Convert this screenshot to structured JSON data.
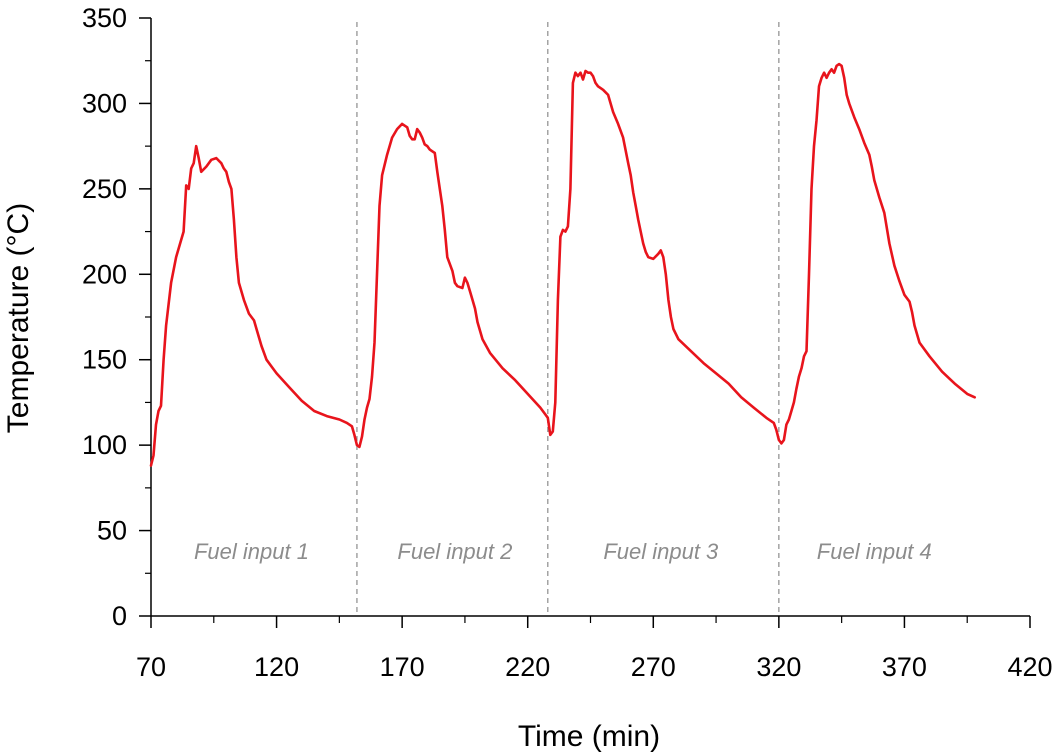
{
  "chart_data": {
    "type": "line",
    "xlabel": "Time (min)",
    "ylabel": "Temperature (°C)",
    "xlim": [
      70,
      420
    ],
    "ylim": [
      0,
      350
    ],
    "x_ticks": [
      70,
      120,
      170,
      220,
      270,
      320,
      370,
      420
    ],
    "y_ticks": [
      0,
      50,
      100,
      150,
      200,
      250,
      300,
      350
    ],
    "grid": false,
    "line_color": "#e8141c",
    "divider_color": "#8c8c8c",
    "dividers": [
      152,
      228,
      320
    ],
    "regions": [
      {
        "label": "Fuel input 1",
        "x": 110
      },
      {
        "label": "Fuel input 2",
        "x": 191
      },
      {
        "label": "Fuel input 3",
        "x": 273
      },
      {
        "label": "Fuel input 4",
        "x": 358
      }
    ],
    "series": [
      {
        "points": [
          [
            70,
            88
          ],
          [
            71,
            94
          ],
          [
            72,
            112
          ],
          [
            73,
            120
          ],
          [
            74,
            123
          ],
          [
            75,
            150
          ],
          [
            76,
            170
          ],
          [
            78,
            195
          ],
          [
            80,
            210
          ],
          [
            82,
            220
          ],
          [
            83,
            225
          ],
          [
            84,
            252
          ],
          [
            85,
            250
          ],
          [
            86,
            262
          ],
          [
            87,
            265
          ],
          [
            88,
            275
          ],
          [
            89,
            268
          ],
          [
            90,
            260
          ],
          [
            92,
            263
          ],
          [
            94,
            267
          ],
          [
            96,
            268
          ],
          [
            98,
            265
          ],
          [
            99,
            262
          ],
          [
            100,
            260
          ],
          [
            101,
            254
          ],
          [
            102,
            250
          ],
          [
            103,
            232
          ],
          [
            104,
            210
          ],
          [
            105,
            195
          ],
          [
            107,
            185
          ],
          [
            109,
            177
          ],
          [
            111,
            173
          ],
          [
            112,
            168
          ],
          [
            114,
            158
          ],
          [
            116,
            150
          ],
          [
            118,
            146
          ],
          [
            120,
            142
          ],
          [
            125,
            134
          ],
          [
            130,
            126
          ],
          [
            135,
            120
          ],
          [
            140,
            117
          ],
          [
            145,
            115
          ],
          [
            148,
            113
          ],
          [
            150,
            111
          ],
          [
            151,
            106
          ],
          [
            152,
            100
          ],
          [
            153,
            99
          ],
          [
            154,
            105
          ],
          [
            155,
            115
          ],
          [
            156,
            122
          ],
          [
            157,
            127
          ],
          [
            158,
            140
          ],
          [
            159,
            160
          ],
          [
            160,
            200
          ],
          [
            161,
            240
          ],
          [
            162,
            258
          ],
          [
            164,
            270
          ],
          [
            166,
            280
          ],
          [
            168,
            285
          ],
          [
            170,
            288
          ],
          [
            172,
            286
          ],
          [
            173,
            281
          ],
          [
            174,
            279
          ],
          [
            175,
            279
          ],
          [
            176,
            285
          ],
          [
            177,
            283
          ],
          [
            178,
            280
          ],
          [
            179,
            276
          ],
          [
            180,
            275
          ],
          [
            181,
            273
          ],
          [
            182,
            272
          ],
          [
            183,
            271
          ],
          [
            184,
            260
          ],
          [
            185,
            250
          ],
          [
            186,
            240
          ],
          [
            187,
            226
          ],
          [
            188,
            210
          ],
          [
            190,
            202
          ],
          [
            191,
            195
          ],
          [
            192,
            193
          ],
          [
            194,
            192
          ],
          [
            195,
            198
          ],
          [
            196,
            195
          ],
          [
            197,
            190
          ],
          [
            198,
            185
          ],
          [
            199,
            180
          ],
          [
            200,
            172
          ],
          [
            202,
            162
          ],
          [
            205,
            154
          ],
          [
            210,
            145
          ],
          [
            215,
            138
          ],
          [
            220,
            130
          ],
          [
            225,
            122
          ],
          [
            227,
            118
          ],
          [
            228,
            116
          ],
          [
            229,
            106
          ],
          [
            230,
            108
          ],
          [
            231,
            125
          ],
          [
            232,
            185
          ],
          [
            233,
            222
          ],
          [
            234,
            226
          ],
          [
            235,
            225
          ],
          [
            236,
            228
          ],
          [
            237,
            250
          ],
          [
            238,
            312
          ],
          [
            239,
            318
          ],
          [
            240,
            316
          ],
          [
            241,
            318
          ],
          [
            242,
            314
          ],
          [
            243,
            319
          ],
          [
            244,
            318
          ],
          [
            245,
            318
          ],
          [
            246,
            316
          ],
          [
            247,
            312
          ],
          [
            248,
            310
          ],
          [
            250,
            308
          ],
          [
            252,
            305
          ],
          [
            254,
            295
          ],
          [
            256,
            288
          ],
          [
            258,
            280
          ],
          [
            260,
            265
          ],
          [
            261,
            258
          ],
          [
            262,
            248
          ],
          [
            263,
            240
          ],
          [
            264,
            232
          ],
          [
            265,
            225
          ],
          [
            266,
            218
          ],
          [
            267,
            213
          ],
          [
            268,
            210
          ],
          [
            270,
            209
          ],
          [
            272,
            212
          ],
          [
            273,
            214
          ],
          [
            274,
            210
          ],
          [
            275,
            200
          ],
          [
            276,
            185
          ],
          [
            277,
            175
          ],
          [
            278,
            168
          ],
          [
            280,
            162
          ],
          [
            285,
            155
          ],
          [
            290,
            148
          ],
          [
            295,
            142
          ],
          [
            300,
            136
          ],
          [
            305,
            128
          ],
          [
            310,
            122
          ],
          [
            315,
            116
          ],
          [
            318,
            113
          ],
          [
            319,
            109
          ],
          [
            320,
            103
          ],
          [
            321,
            101
          ],
          [
            322,
            103
          ],
          [
            323,
            112
          ],
          [
            324,
            115
          ],
          [
            325,
            120
          ],
          [
            326,
            125
          ],
          [
            327,
            133
          ],
          [
            328,
            140
          ],
          [
            329,
            145
          ],
          [
            330,
            152
          ],
          [
            331,
            155
          ],
          [
            332,
            200
          ],
          [
            333,
            250
          ],
          [
            334,
            275
          ],
          [
            335,
            290
          ],
          [
            336,
            310
          ],
          [
            337,
            315
          ],
          [
            338,
            318
          ],
          [
            339,
            315
          ],
          [
            340,
            318
          ],
          [
            341,
            320
          ],
          [
            342,
            318
          ],
          [
            343,
            322
          ],
          [
            344,
            323
          ],
          [
            345,
            322
          ],
          [
            346,
            315
          ],
          [
            347,
            305
          ],
          [
            348,
            300
          ],
          [
            350,
            292
          ],
          [
            352,
            285
          ],
          [
            354,
            277
          ],
          [
            356,
            270
          ],
          [
            357,
            263
          ],
          [
            358,
            255
          ],
          [
            360,
            245
          ],
          [
            362,
            236
          ],
          [
            364,
            218
          ],
          [
            366,
            205
          ],
          [
            368,
            196
          ],
          [
            370,
            188
          ],
          [
            372,
            184
          ],
          [
            373,
            178
          ],
          [
            374,
            170
          ],
          [
            376,
            160
          ],
          [
            380,
            152
          ],
          [
            385,
            143
          ],
          [
            390,
            136
          ],
          [
            395,
            130
          ],
          [
            398,
            128
          ]
        ]
      }
    ]
  }
}
